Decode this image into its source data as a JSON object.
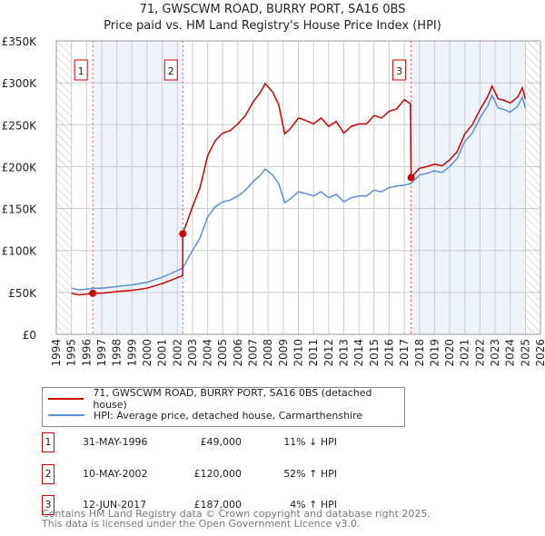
{
  "chart_data": {
    "type": "line",
    "title": "71, GWSCWM ROAD, BURRY PORT, SA16 0BS",
    "subtitle": "Price paid vs. HM Land Registry's House Price Index (HPI)",
    "xlim": [
      1994,
      2026
    ],
    "ylim": [
      0,
      350000
    ],
    "x_ticks": [
      "1994",
      "1995",
      "1996",
      "1997",
      "1998",
      "1999",
      "2000",
      "2001",
      "2002",
      "2003",
      "2004",
      "2005",
      "2006",
      "2007",
      "2008",
      "2009",
      "2010",
      "2011",
      "2012",
      "2013",
      "2014",
      "2015",
      "2016",
      "2017",
      "2018",
      "2019",
      "2020",
      "2021",
      "2022",
      "2023",
      "2024",
      "2025",
      "2026"
    ],
    "y_ticks": [
      {
        "v": 0,
        "label": "£0"
      },
      {
        "v": 50000,
        "label": "£50K"
      },
      {
        "v": 100000,
        "label": "£100K"
      },
      {
        "v": 150000,
        "label": "£150K"
      },
      {
        "v": 200000,
        "label": "£200K"
      },
      {
        "v": 250000,
        "label": "£250K"
      },
      {
        "v": 300000,
        "label": "£300K"
      },
      {
        "v": 350000,
        "label": "£350K"
      }
    ],
    "grid": true,
    "series": [
      {
        "name": "71, GWSCWM ROAD, BURRY PORT, SA16 0BS (detached house)",
        "color": "#cc0000",
        "x": [
          1995,
          1995.5,
          1996,
          1996.41,
          1997,
          1998,
          1999,
          2000,
          2001,
          2001.5,
          2002,
          2002.35,
          2002.36,
          2003,
          2003.5,
          2004,
          2004.5,
          2005,
          2005.5,
          2006,
          2006.5,
          2007,
          2007.5,
          2007.8,
          2008.3,
          2008.7,
          2009.1,
          2009.5,
          2010,
          2010.5,
          2011,
          2011.5,
          2012,
          2012.5,
          2013,
          2013.5,
          2014,
          2014.5,
          2015,
          2015.5,
          2016,
          2016.5,
          2017,
          2017.4,
          2017.45,
          2018,
          2018.5,
          2019,
          2019.5,
          2020,
          2020.5,
          2021,
          2021.5,
          2022,
          2022.5,
          2022.8,
          2023.2,
          2023.6,
          2024,
          2024.5,
          2024.8,
          2025
        ],
        "y": [
          49000,
          47000,
          48000,
          49000,
          49000,
          51000,
          52500,
          55000,
          60500,
          64000,
          67600,
          70000,
          120000,
          152000,
          175000,
          213000,
          231000,
          240000,
          243000,
          251000,
          261000,
          277000,
          289000,
          299000,
          289000,
          274000,
          239000,
          246000,
          258000,
          255000,
          251000,
          258000,
          248000,
          254000,
          240000,
          248000,
          251000,
          251000,
          261000,
          258000,
          266000,
          269000,
          280000,
          275000,
          187000,
          198000,
          200000,
          203000,
          201000,
          208000,
          218000,
          239000,
          250000,
          268000,
          283000,
          296000,
          281000,
          279000,
          276000,
          283000,
          294000,
          281000
        ]
      },
      {
        "name": "HPI: Average price, detached house, Carmarthenshire",
        "color": "#5b8fd6",
        "x": [
          1995,
          1995.5,
          1996,
          1996.41,
          1997,
          1998,
          1999,
          2000,
          2001,
          2001.5,
          2002,
          2002.36,
          2003,
          2003.5,
          2004,
          2004.5,
          2005,
          2005.5,
          2006,
          2006.5,
          2007,
          2007.5,
          2007.8,
          2008.3,
          2008.7,
          2009.1,
          2009.5,
          2010,
          2010.5,
          2011,
          2011.5,
          2012,
          2012.5,
          2013,
          2013.5,
          2014,
          2014.5,
          2015,
          2015.5,
          2016,
          2016.5,
          2017,
          2017.45,
          2018,
          2018.5,
          2019,
          2019.5,
          2020,
          2020.5,
          2021,
          2021.5,
          2022,
          2022.5,
          2022.8,
          2023.2,
          2023.6,
          2024,
          2024.5,
          2024.8,
          2025
        ],
        "y": [
          55000,
          53000,
          54000,
          55000,
          55000,
          57000,
          59000,
          62000,
          68000,
          72000,
          76000,
          79000,
          100000,
          115000,
          140000,
          152000,
          158000,
          160000,
          165000,
          172000,
          182000,
          190000,
          197000,
          190000,
          180000,
          157000,
          162000,
          170000,
          168000,
          165000,
          170000,
          163000,
          167000,
          158000,
          163000,
          165000,
          165000,
          172000,
          170000,
          175000,
          177000,
          178000,
          180000,
          190000,
          192000,
          195000,
          193000,
          200000,
          210000,
          230000,
          240000,
          258000,
          272000,
          285000,
          270000,
          268000,
          265000,
          272000,
          283000,
          270000
        ]
      }
    ],
    "sales": [
      {
        "n": "1",
        "date": "31-MAY-1996",
        "x": 1996.41,
        "price": "£49,000",
        "value": 49000,
        "hpi": "11% ↓ HPI"
      },
      {
        "n": "2",
        "date": "10-MAY-2002",
        "x": 2002.36,
        "price": "£120,000",
        "value": 120000,
        "hpi": "52% ↑ HPI"
      },
      {
        "n": "3",
        "date": "12-JUN-2017",
        "x": 2017.45,
        "price": "£187,000",
        "value": 187000,
        "hpi": "4% ↑ HPI"
      }
    ],
    "hatched_before": 1995,
    "hatched_after": 2025
  },
  "footer": {
    "line1": "Contains HM Land Registry data © Crown copyright and database right 2025.",
    "line2": "This data is licensed under the Open Government Licence v3.0."
  }
}
